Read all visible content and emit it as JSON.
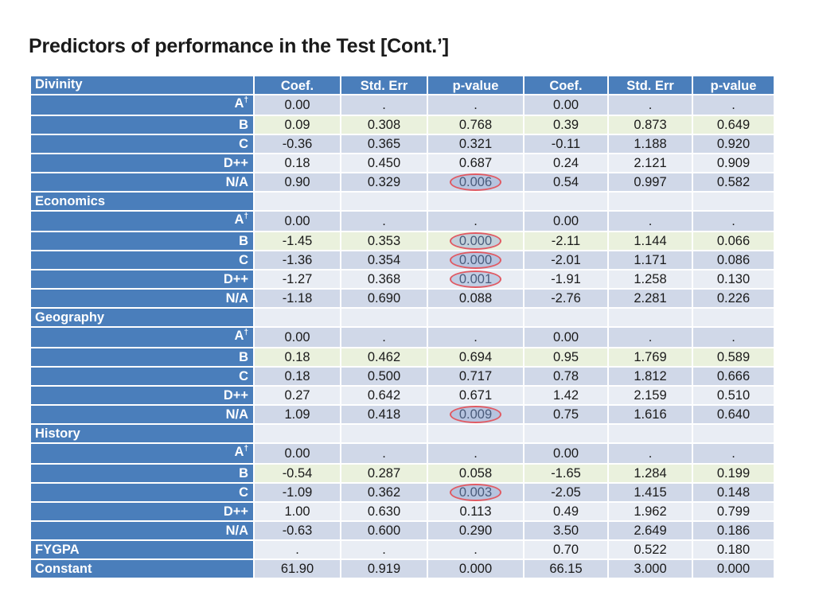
{
  "title": "Predictors of performance in the Test [Cont.’]",
  "header": {
    "first_label": "Divinity",
    "columns": [
      "Coef.",
      "Std. Err",
      "p-value",
      "Coef.",
      "Std. Err",
      "p-value"
    ]
  },
  "dagger": "†",
  "rows": [
    {
      "label": "A",
      "dagger": true,
      "values": [
        "0.00",
        ".",
        ".",
        "0.00",
        ".",
        "."
      ]
    },
    {
      "label": "B",
      "values": [
        "0.09",
        "0.308",
        "0.768",
        "0.39",
        "0.873",
        "0.649"
      ]
    },
    {
      "label": "C",
      "values": [
        "-0.36",
        "0.365",
        "0.321",
        "-0.11",
        "1.188",
        "0.920"
      ]
    },
    {
      "label": "D++",
      "values": [
        "0.18",
        "0.450",
        "0.687",
        "0.24",
        "2.121",
        "0.909"
      ]
    },
    {
      "label": "N/A",
      "values": [
        "0.90",
        "0.329",
        "0.006",
        "0.54",
        "0.997",
        "0.582"
      ],
      "highlight": 2
    },
    {
      "section": "Economics"
    },
    {
      "label": "A",
      "dagger": true,
      "values": [
        "0.00",
        ".",
        ".",
        "0.00",
        ".",
        "."
      ]
    },
    {
      "label": "B",
      "values": [
        "-1.45",
        "0.353",
        "0.000",
        "-2.11",
        "1.144",
        "0.066"
      ],
      "highlight": 2
    },
    {
      "label": "C",
      "values": [
        "-1.36",
        "0.354",
        "0.000",
        "-2.01",
        "1.171",
        "0.086"
      ],
      "highlight": 2
    },
    {
      "label": "D++",
      "values": [
        "-1.27",
        "0.368",
        "0.001",
        "-1.91",
        "1.258",
        "0.130"
      ],
      "highlight": 2
    },
    {
      "label": "N/A",
      "values": [
        "-1.18",
        "0.690",
        "0.088",
        "-2.76",
        "2.281",
        "0.226"
      ]
    },
    {
      "section": "Geography"
    },
    {
      "label": "A",
      "dagger": true,
      "values": [
        "0.00",
        ".",
        ".",
        "0.00",
        ".",
        "."
      ]
    },
    {
      "label": "B",
      "values": [
        "0.18",
        "0.462",
        "0.694",
        "0.95",
        "1.769",
        "0.589"
      ]
    },
    {
      "label": "C",
      "values": [
        "0.18",
        "0.500",
        "0.717",
        "0.78",
        "1.812",
        "0.666"
      ]
    },
    {
      "label": "D++",
      "values": [
        "0.27",
        "0.642",
        "0.671",
        "1.42",
        "2.159",
        "0.510"
      ]
    },
    {
      "label": "N/A",
      "values": [
        "1.09",
        "0.418",
        "0.009",
        "0.75",
        "1.616",
        "0.640"
      ],
      "highlight": 2
    },
    {
      "section": "History"
    },
    {
      "label": "A",
      "dagger": true,
      "values": [
        "0.00",
        ".",
        ".",
        "0.00",
        ".",
        "."
      ]
    },
    {
      "label": "B",
      "values": [
        "-0.54",
        "0.287",
        "0.058",
        "-1.65",
        "1.284",
        "0.199"
      ]
    },
    {
      "label": "C",
      "values": [
        "-1.09",
        "0.362",
        "0.003",
        "-2.05",
        "1.415",
        "0.148"
      ],
      "highlight": 2
    },
    {
      "label": "D++",
      "values": [
        "1.00",
        "0.630",
        "0.113",
        "0.49",
        "1.962",
        "0.799"
      ]
    },
    {
      "label": "N/A",
      "values": [
        "-0.63",
        "0.600",
        "0.290",
        "3.50",
        "2.649",
        "0.186"
      ]
    },
    {
      "label": "FYGPA",
      "left": true,
      "values": [
        ".",
        ".",
        ".",
        "0.70",
        "0.522",
        "0.180"
      ]
    },
    {
      "label": "Constant",
      "left": true,
      "values": [
        "61.90",
        "0.919",
        "0.000",
        "66.15",
        "3.000",
        "0.000"
      ]
    }
  ],
  "colors": {
    "header_blue": "#4a7ebb",
    "row_dark": "#d0d8e8",
    "row_light": "#e9edf4",
    "row_green": "#eaf1dd",
    "highlight_ring": "#e05a63"
  }
}
